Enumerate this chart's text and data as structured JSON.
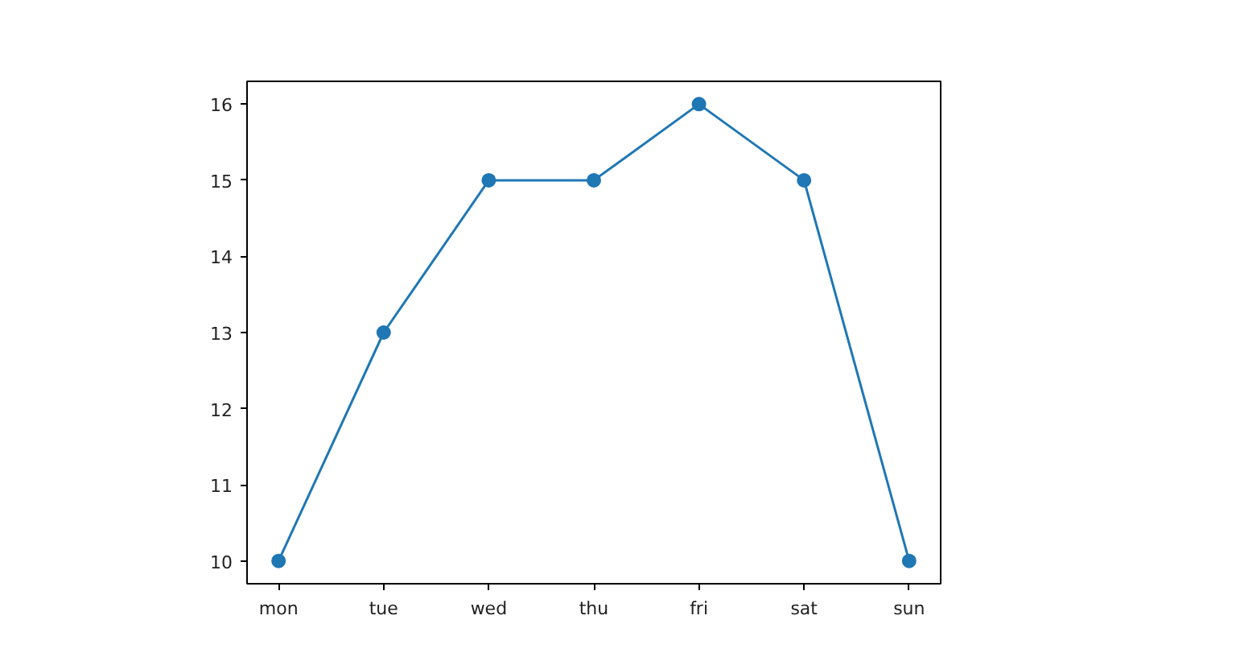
{
  "chart_data": {
    "type": "line",
    "categories": [
      "mon",
      "tue",
      "wed",
      "thu",
      "fri",
      "sat",
      "sun"
    ],
    "series": [
      {
        "color": "#1f77b4",
        "values": [
          10,
          13,
          15,
          15,
          16,
          15,
          10
        ]
      }
    ],
    "ylim": [
      9.7,
      16.3
    ],
    "yticks": [
      10,
      11,
      12,
      13,
      14,
      15,
      16
    ],
    "marker": "circle",
    "line_style": "solid",
    "grid": false
  }
}
